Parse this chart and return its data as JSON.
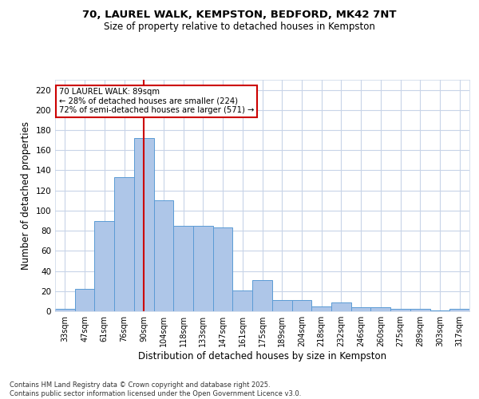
{
  "title_line1": "70, LAUREL WALK, KEMPSTON, BEDFORD, MK42 7NT",
  "title_line2": "Size of property relative to detached houses in Kempston",
  "xlabel": "Distribution of detached houses by size in Kempston",
  "ylabel": "Number of detached properties",
  "categories": [
    "33sqm",
    "47sqm",
    "61sqm",
    "76sqm",
    "90sqm",
    "104sqm",
    "118sqm",
    "133sqm",
    "147sqm",
    "161sqm",
    "175sqm",
    "189sqm",
    "204sqm",
    "218sqm",
    "232sqm",
    "246sqm",
    "260sqm",
    "275sqm",
    "289sqm",
    "303sqm",
    "317sqm"
  ],
  "values": [
    2,
    22,
    90,
    133,
    172,
    110,
    85,
    85,
    83,
    21,
    31,
    11,
    11,
    5,
    9,
    4,
    4,
    2,
    2,
    1,
    2
  ],
  "bar_color": "#aec6e8",
  "bar_edge_color": "#5b9bd5",
  "property_size_index": 4,
  "annotation_line1": "70 LAUREL WALK: 89sqm",
  "annotation_line2": "← 28% of detached houses are smaller (224)",
  "annotation_line3": "72% of semi-detached houses are larger (571) →",
  "vline_color": "#cc0000",
  "annotation_box_color": "#cc0000",
  "background_color": "#ffffff",
  "grid_color": "#c8d4e8",
  "footer_line1": "Contains HM Land Registry data © Crown copyright and database right 2025.",
  "footer_line2": "Contains public sector information licensed under the Open Government Licence v3.0.",
  "ylim": [
    0,
    230
  ],
  "yticks": [
    0,
    20,
    40,
    60,
    80,
    100,
    120,
    140,
    160,
    180,
    200,
    220
  ]
}
